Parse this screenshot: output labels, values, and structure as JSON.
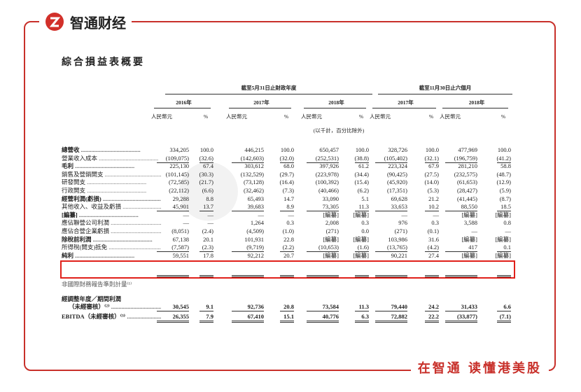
{
  "header": {
    "logo_text": "智通财经"
  },
  "title": "綜合損益表概要",
  "table": {
    "group_headers": [
      "截至5月31日止財政年度",
      "截至11月30日止六個月"
    ],
    "years": [
      "2016年",
      "2017年",
      "2018年",
      "2017年",
      "2018年"
    ],
    "unit_headers": [
      "人民幣元",
      "%",
      "人民幣元",
      "%",
      "人民幣元",
      "%",
      "人民幣元",
      "%",
      "人民幣元",
      "%"
    ],
    "note": "(以千計，百分比除外)",
    "rows": [
      {
        "label": "總營收",
        "bold": true,
        "cells": [
          "334,205",
          "100.0",
          "446,215",
          "100.0",
          "650,457",
          "100.0",
          "328,726",
          "100.0",
          "477,969",
          "100.0"
        ]
      },
      {
        "label": "營業收入成本",
        "bold": false,
        "cells": [
          "(109,075)",
          "(32.6)",
          "(142,603)",
          "(32.0)",
          "(252,531)",
          "(38.8)",
          "(105,402)",
          "(32.1)",
          "(196,759)",
          "(41.2)"
        ]
      },
      {
        "label": "毛利",
        "bold": true,
        "cells": [
          "225,130",
          "67.4",
          "303,612",
          "68.0",
          "397,926",
          "61.2",
          "223,324",
          "67.9",
          "281,210",
          "58.8"
        ]
      },
      {
        "label": "銷售及營銷開支",
        "bold": false,
        "cells": [
          "(101,145)",
          "(30.3)",
          "(132,529)",
          "(29.7)",
          "(223,978)",
          "(34.4)",
          "(90,425)",
          "(27.5)",
          "(232,575)",
          "(48.7)"
        ]
      },
      {
        "label": "研發開支",
        "bold": false,
        "cells": [
          "(72,585)",
          "(21.7)",
          "(73,128)",
          "(16.4)",
          "(100,392)",
          "(15.4)",
          "(45,920)",
          "(14.0)",
          "(61,653)",
          "(12.9)"
        ]
      },
      {
        "label": "行政開支",
        "bold": false,
        "cells": [
          "(22,112)",
          "(6.6)",
          "(32,462)",
          "(7.3)",
          "(40,466)",
          "(6.2)",
          "(17,351)",
          "(5.3)",
          "(28,427)",
          "(5.9)"
        ]
      },
      {
        "label": "經營利潤(虧損)",
        "bold": true,
        "cells": [
          "29,288",
          "8.8",
          "65,493",
          "14.7",
          "33,090",
          "5.1",
          "69,628",
          "21.2",
          "(41,445)",
          "(8.7)"
        ]
      },
      {
        "label": "其他收入、收益及虧損",
        "bold": false,
        "cells": [
          "45,901",
          "13.7",
          "39,683",
          "8.9",
          "73,305",
          "11.3",
          "33,653",
          "10.2",
          "88,550",
          "18.5"
        ]
      },
      {
        "label": "[編纂]",
        "bold": true,
        "cells": [
          "—",
          "—",
          "—",
          "—",
          "[編纂]",
          "[編纂]",
          "—",
          "—",
          "[編纂]",
          "[編纂]"
        ]
      },
      {
        "label": "應佔聯營公司利潤",
        "bold": false,
        "cells": [
          "—",
          "—",
          "1,264",
          "0.3",
          "2,008",
          "0.3",
          "976",
          "0.3",
          "3,588",
          "0.8"
        ]
      },
      {
        "label": "應佔合營企業虧損",
        "bold": false,
        "cells": [
          "(8,051)",
          "(2.4)",
          "(4,509)",
          "(1.0)",
          "(271)",
          "0.0",
          "(271)",
          "(0.1)",
          "—",
          "—"
        ]
      },
      {
        "label": "除稅前利潤",
        "bold": true,
        "cells": [
          "67,138",
          "20.1",
          "101,931",
          "22.8",
          "[編纂]",
          "[編纂]",
          "103,986",
          "31.6",
          "[編纂]",
          "[編纂]"
        ]
      },
      {
        "label": "所得稅(開支)抵免",
        "bold": false,
        "cells": [
          "(7,587)",
          "(2.3)",
          "(9,719)",
          "(2.2)",
          "(10,653)",
          "(1.6)",
          "(13,765)",
          "(4.2)",
          "417",
          "0.1"
        ]
      },
      {
        "label": "純利",
        "bold": true,
        "cells": [
          "59,551",
          "17.8",
          "92,212",
          "20.7",
          "[編纂]",
          "[編纂]",
          "90,221",
          "27.4",
          "[編纂]",
          "[編纂]"
        ]
      }
    ],
    "section_label": "非國際財務報告準則計量⁽¹⁾",
    "adjusted_rows": [
      {
        "label": "經調整年度／期間利潤",
        "label_line2": "（未經審核）⁽²⁾",
        "cells": [
          "30,545",
          "9.1",
          "92,736",
          "20.8",
          "73,584",
          "11.3",
          "79,440",
          "24.2",
          "31,433",
          "6.6"
        ]
      },
      {
        "label": "EBITDA（未經審核）⁽³⁾",
        "cells": [
          "26,355",
          "7.9",
          "67,410",
          "15.1",
          "40,776",
          "6.3",
          "72,882",
          "22.2",
          "(33,877)",
          "(7.1)"
        ]
      }
    ]
  },
  "footer": {
    "slogan": "在智通 读懂港美股"
  }
}
